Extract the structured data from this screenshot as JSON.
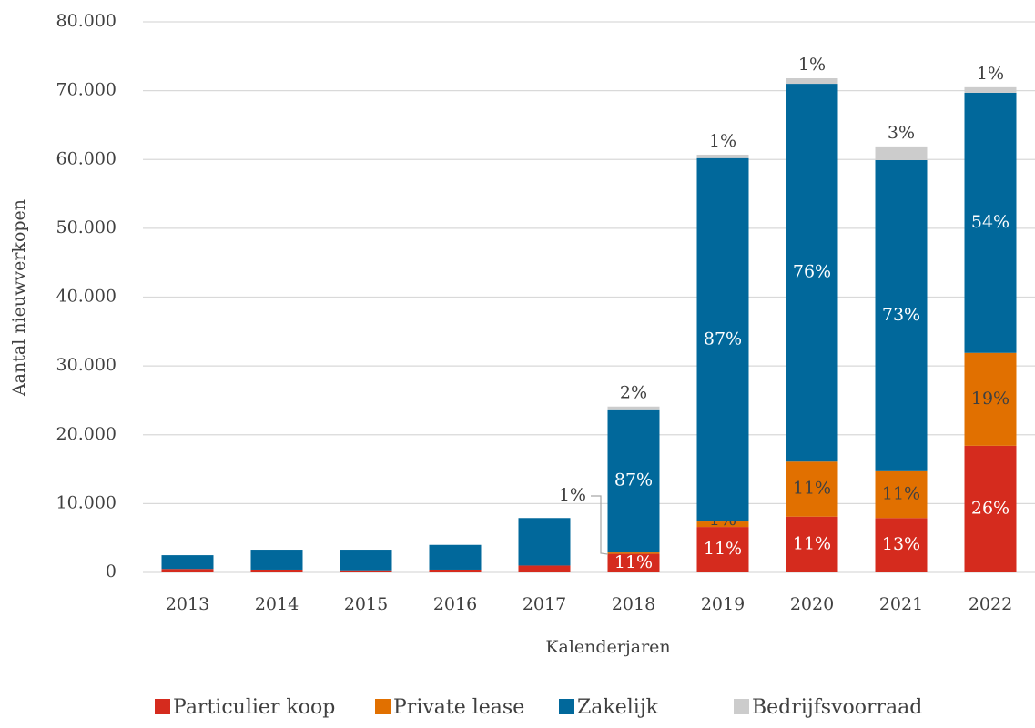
{
  "chart_data": {
    "type": "stacked_bar",
    "categories": [
      "2013",
      "2014",
      "2015",
      "2016",
      "2017",
      "2018",
      "2019",
      "2020",
      "2021",
      "2022"
    ],
    "series": [
      {
        "name": "Particulier koop",
        "color": "#d52b1e",
        "values": [
          500,
          400,
          300,
          400,
          1000,
          2700,
          6600,
          8100,
          7900,
          18400
        ],
        "share_labels": [
          null,
          null,
          null,
          null,
          null,
          "11%",
          "11%",
          "11%",
          "13%",
          "26%"
        ]
      },
      {
        "name": "Private lease",
        "color": "#e17000",
        "values": [
          0,
          0,
          0,
          0,
          0,
          200,
          800,
          8000,
          6800,
          13500
        ],
        "share_labels": [
          null,
          null,
          null,
          null,
          null,
          "1%",
          "1%",
          "11%",
          "11%",
          "19%"
        ]
      },
      {
        "name": "Zakelijk",
        "color": "#01689b",
        "values": [
          2000,
          2900,
          3000,
          3600,
          6900,
          20800,
          52800,
          54900,
          45200,
          37800
        ],
        "share_labels": [
          null,
          null,
          null,
          null,
          null,
          "87%",
          "87%",
          "76%",
          "73%",
          "54%"
        ]
      },
      {
        "name": "Bedrijfsvoorraad",
        "color": "#cccccc",
        "values": [
          0,
          0,
          0,
          0,
          0,
          400,
          500,
          800,
          2000,
          800
        ],
        "share_labels": [
          null,
          null,
          null,
          null,
          null,
          "2%",
          "1%",
          "1%",
          "3%",
          "1%"
        ]
      }
    ],
    "xlabel": "Kalenderjaren",
    "ylabel": "Aantal nieuwverkopen",
    "ylim": [
      0,
      80000
    ],
    "yticks": [
      0,
      {
        "value": 10000,
        "label": "10.000"
      },
      {
        "value": 20000,
        "label": "20.000"
      },
      {
        "value": 30000,
        "label": "30.000"
      },
      {
        "value": 40000,
        "label": "40.000"
      },
      {
        "value": 50000,
        "label": "50.000"
      },
      {
        "value": 60000,
        "label": "60.000"
      },
      {
        "value": 70000,
        "label": "70.000"
      },
      {
        "value": 80000,
        "label": "80.000"
      }
    ],
    "grid": true,
    "legend": "bottom"
  }
}
